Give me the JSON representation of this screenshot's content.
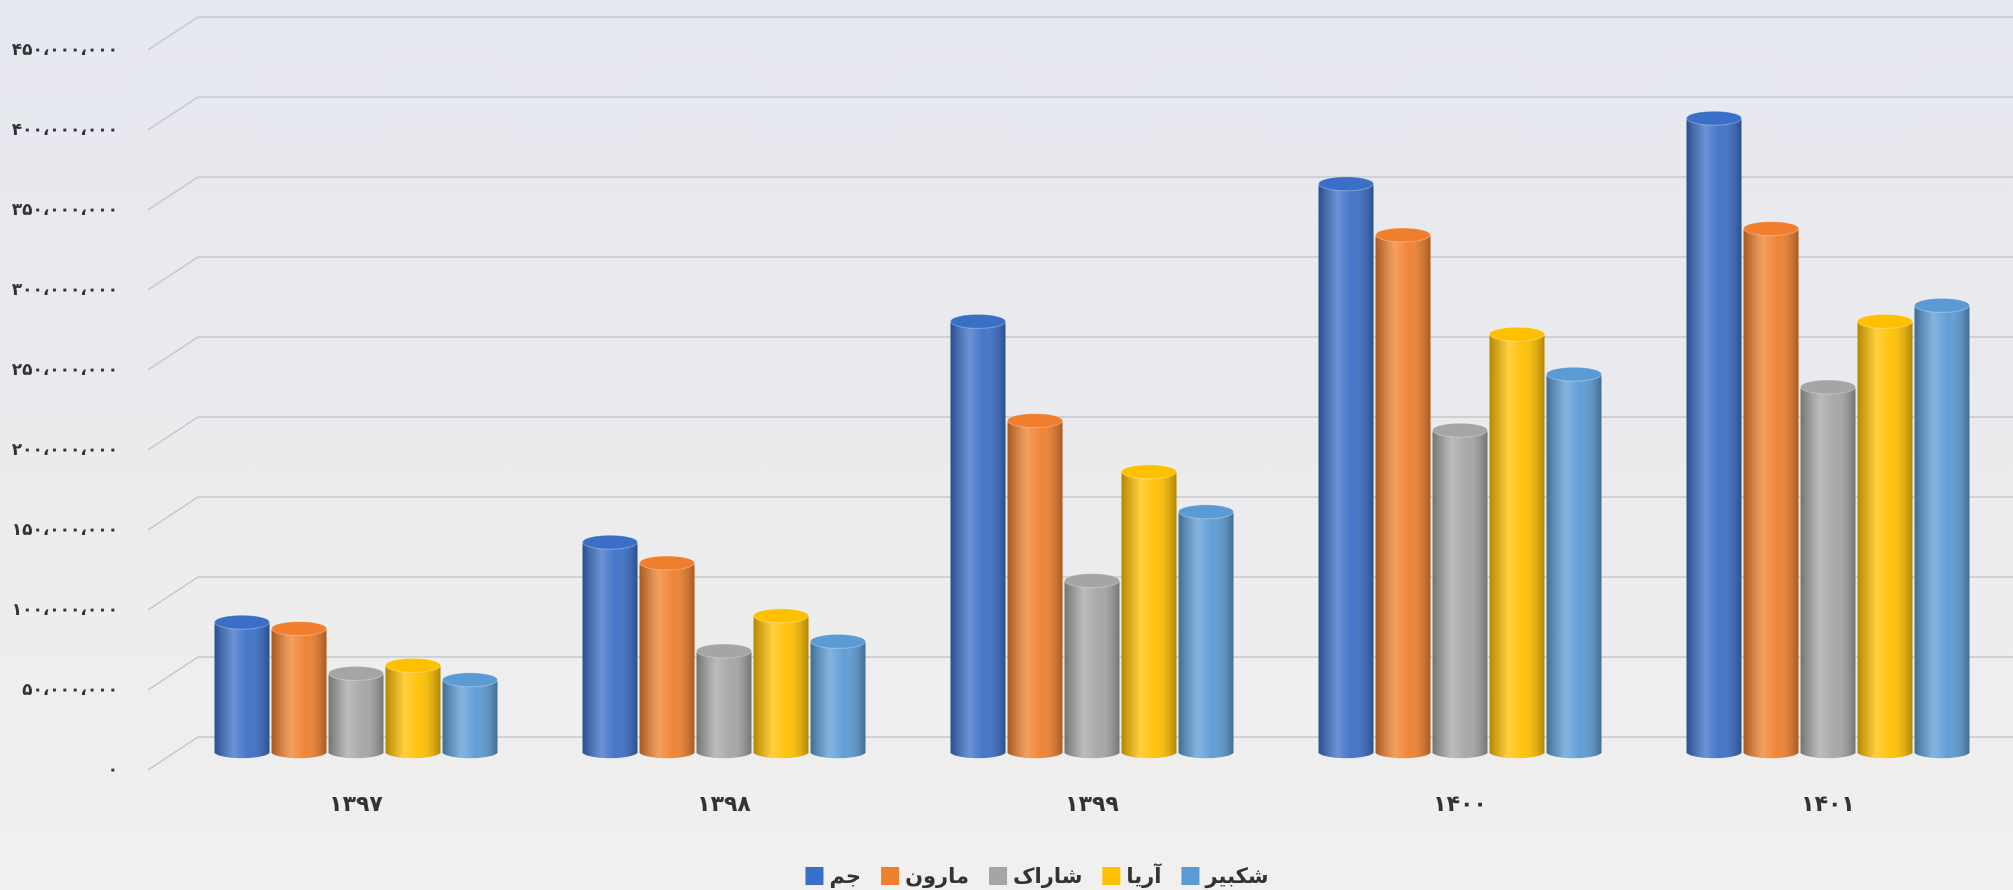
{
  "chart_data": {
    "type": "bar",
    "categories": [
      "۱۳۹۷",
      "۱۳۹۸",
      "۱۳۹۹",
      "۱۴۰۰",
      "۱۴۰۱"
    ],
    "series": [
      {
        "name": "جم",
        "color": "#3a6fc8",
        "values": [
          83000000,
          133000000,
          271000000,
          357000000,
          398000000
        ]
      },
      {
        "name": "مارون",
        "color": "#f07f2d",
        "values": [
          79000000,
          120000000,
          209000000,
          325000000,
          329000000
        ]
      },
      {
        "name": "شاراک",
        "color": "#a5a5a5",
        "values": [
          51000000,
          65000000,
          109000000,
          203000000,
          230000000
        ]
      },
      {
        "name": "آریا",
        "color": "#ffc000",
        "values": [
          56000000,
          87000000,
          177000000,
          263000000,
          271000000
        ]
      },
      {
        "name": "شکبیر",
        "color": "#5b9bd5",
        "values": [
          47000000,
          71000000,
          152000000,
          238000000,
          281000000
        ]
      }
    ],
    "ylim": [
      0,
      450000000
    ],
    "yticks": [
      {
        "value": 0,
        "label": "۰"
      },
      {
        "value": 50000000,
        "label": "۵۰،۰۰۰،۰۰۰"
      },
      {
        "value": 100000000,
        "label": "۱۰۰،۰۰۰،۰۰۰"
      },
      {
        "value": 150000000,
        "label": "۱۵۰،۰۰۰،۰۰۰"
      },
      {
        "value": 200000000,
        "label": "۲۰۰،۰۰۰،۰۰۰"
      },
      {
        "value": 250000000,
        "label": "۲۵۰،۰۰۰،۰۰۰"
      },
      {
        "value": 300000000,
        "label": "۳۰۰،۰۰۰،۰۰۰"
      },
      {
        "value": 350000000,
        "label": "۳۵۰،۰۰۰،۰۰۰"
      },
      {
        "value": 400000000,
        "label": "۴۰۰،۰۰۰،۰۰۰"
      },
      {
        "value": 450000000,
        "label": "۴۵۰،۰۰۰،۰۰۰"
      }
    ],
    "grid": true
  }
}
